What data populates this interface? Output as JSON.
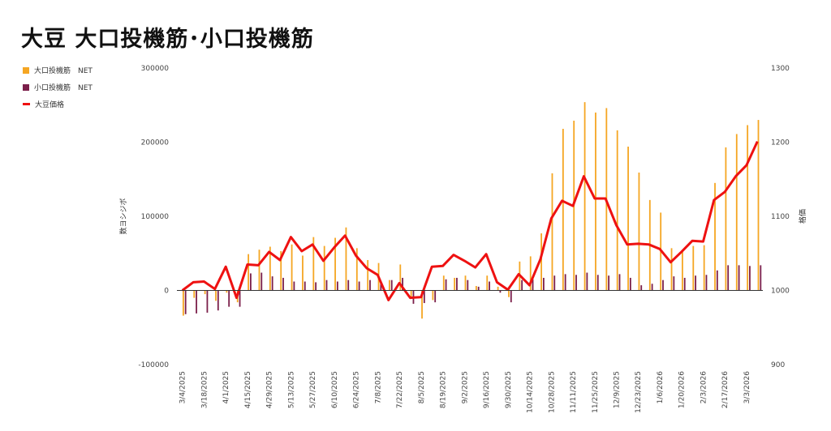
{
  "title": "大豆 大口投機筋･小口投機筋",
  "legend": [
    {
      "name": "大口投機筋　NET",
      "color": "#f5a623"
    },
    {
      "name": "小口投機筋　NET",
      "color": "#7b1f4a"
    },
    {
      "name": "大豆価格",
      "color": "#ee1111"
    }
  ],
  "chart_data": {
    "type": "bar",
    "combo": "bar+line (dual axis)",
    "ylabel": "数ヨシジボ",
    "y2label": "格価",
    "ylim": [
      -100000,
      300000
    ],
    "yticks": [
      "300000",
      "200000",
      "100000",
      "0",
      "-100000"
    ],
    "y2lim": [
      900,
      1300
    ],
    "y2ticks": [
      "1300",
      "1200",
      "1100",
      "1000",
      "900"
    ],
    "tick_label_every": 2,
    "x": [
      "3/4/2025",
      "3/11/2025",
      "3/18/2025",
      "3/25/2025",
      "4/1/2025",
      "4/8/2025",
      "4/15/2025",
      "4/22/2025",
      "4/29/2025",
      "5/6/2025",
      "5/13/2025",
      "5/20/2025",
      "5/27/2025",
      "6/3/2025",
      "6/10/2025",
      "6/17/2025",
      "6/24/2025",
      "7/1/2025",
      "7/8/2025",
      "7/15/2025",
      "7/22/2025",
      "7/29/2025",
      "8/5/2025",
      "8/12/2025",
      "8/19/2025",
      "8/26/2025",
      "9/2/2025",
      "9/9/2025",
      "9/16/2025",
      "9/23/2025",
      "9/30/2025",
      "10/7/2025",
      "10/14/2025",
      "10/21/2025",
      "10/28/2025",
      "11/4/2025",
      "11/11/2025",
      "11/18/2025",
      "11/25/2025",
      "12/2/2025",
      "12/9/2025",
      "12/16/2025",
      "12/23/2025",
      "12/30/2025",
      "1/6/2026",
      "1/13/2026",
      "1/20/2026",
      "1/27/2026",
      "2/3/2026",
      "2/10/2026",
      "2/17/2026",
      "2/24/2026",
      "3/3/2026",
      "3/10/2026"
    ],
    "series": [
      {
        "name": "大口投機筋　NET",
        "type": "bar",
        "axis": "left",
        "values": [
          -34000,
          -10000,
          -5000,
          -14000,
          -3000,
          -16000,
          49000,
          55000,
          59000,
          53000,
          62000,
          47000,
          72000,
          60000,
          71000,
          85000,
          57000,
          41000,
          37000,
          14000,
          35000,
          -10000,
          -38000,
          -13000,
          20000,
          17000,
          20000,
          6000,
          20000,
          5000,
          -9000,
          39000,
          46000,
          77000,
          158000,
          218000,
          229000,
          254000,
          240000,
          246000,
          216000,
          194000,
          159000,
          122000,
          105000,
          57000,
          52000,
          60000,
          61000,
          145000,
          193000,
          211000,
          223000,
          230000
        ]
      },
      {
        "name": "小口投機筋　NET",
        "type": "bar",
        "axis": "left",
        "values": [
          -32000,
          -31000,
          -30000,
          -27000,
          -22000,
          -22000,
          23000,
          24000,
          19000,
          17000,
          12000,
          12000,
          11000,
          14000,
          12000,
          14000,
          12000,
          14000,
          10000,
          14000,
          17000,
          -18000,
          -17000,
          -16000,
          15000,
          17000,
          14000,
          5000,
          12000,
          -3000,
          -16000,
          14000,
          15000,
          17000,
          20000,
          22000,
          21000,
          24000,
          21000,
          20000,
          22000,
          17000,
          7000,
          9000,
          14000,
          19000,
          17000,
          20000,
          21000,
          27000,
          34000,
          34000,
          33000,
          34000
        ]
      },
      {
        "name": "大豆価格",
        "type": "line",
        "axis": "right",
        "values": [
          1000,
          1011,
          1012,
          1002,
          1032,
          990,
          1035,
          1034,
          1052,
          1041,
          1072,
          1053,
          1062,
          1040,
          1058,
          1074,
          1047,
          1030,
          1021,
          987,
          1010,
          990,
          991,
          1032,
          1033,
          1048,
          1040,
          1031,
          1049,
          1011,
          1001,
          1022,
          1007,
          1042,
          1097,
          1121,
          1114,
          1154,
          1124,
          1124,
          1088,
          1062,
          1063,
          1062,
          1056,
          1038,
          1052,
          1067,
          1066,
          1122,
          1133,
          1154,
          1169,
          1201
        ]
      }
    ]
  }
}
